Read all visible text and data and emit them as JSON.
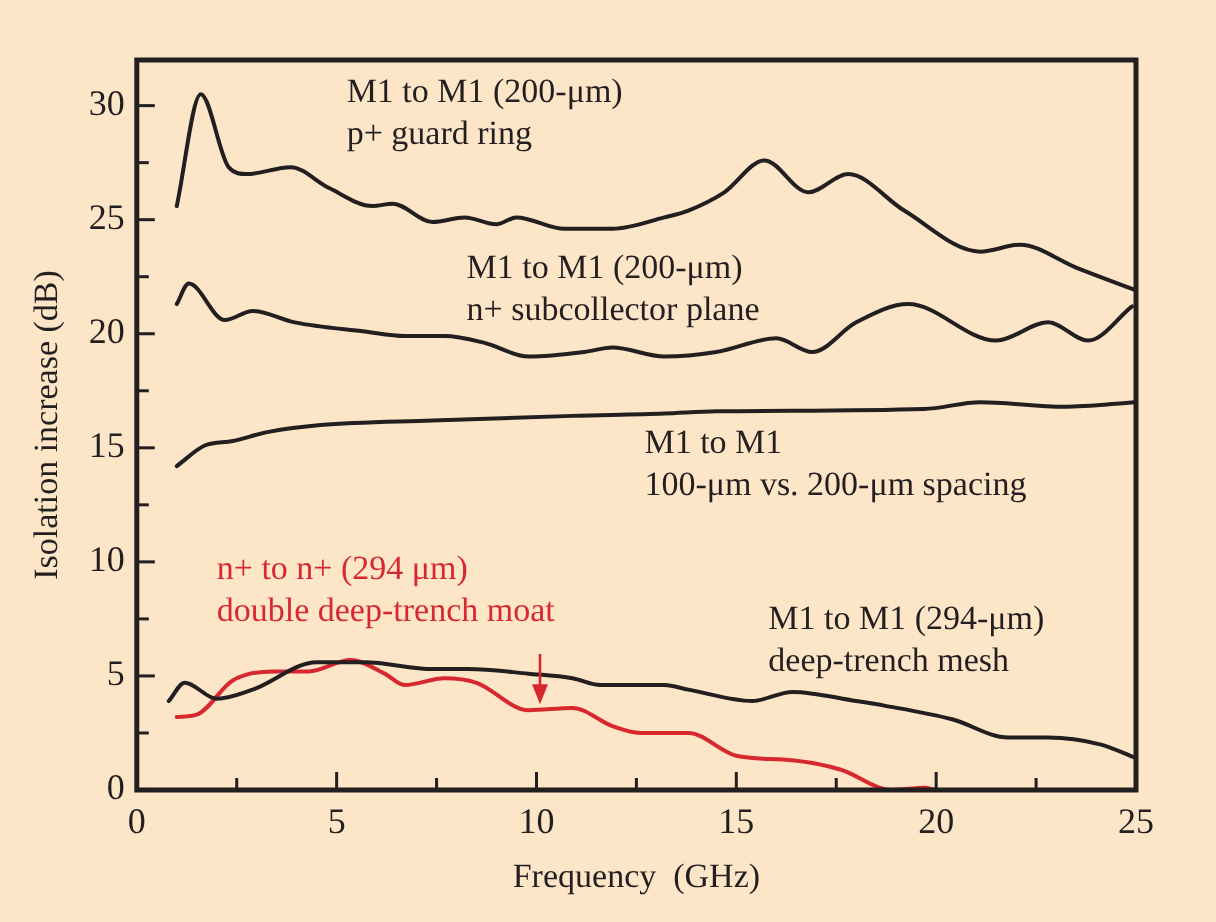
{
  "chart_data": {
    "type": "line",
    "xlabel": "Frequency  (GHz)",
    "ylabel": "Isolation increase (dB)",
    "xlim": [
      0,
      25
    ],
    "ylim": [
      0,
      32
    ],
    "xticks": [
      0,
      {
        "value": 2.5,
        "label": null
      },
      5,
      {
        "value": 7.5,
        "label": null
      },
      10,
      {
        "value": 12.5,
        "label": null
      },
      15,
      {
        "value": 17.5,
        "label": null
      },
      20,
      {
        "value": 22.5,
        "label": null
      },
      25
    ],
    "yticks": [
      0,
      {
        "value": 2.5,
        "label": null
      },
      5,
      {
        "value": 7.5,
        "label": null
      },
      10,
      {
        "value": 12.5,
        "label": null
      },
      15,
      {
        "value": 17.5,
        "label": null
      },
      20,
      {
        "value": 22.5,
        "label": null
      },
      25,
      {
        "value": 27.5,
        "label": null
      },
      30
    ],
    "grid": false,
    "legend": false,
    "marker": "none",
    "line_style": "solid",
    "series": [
      {
        "name": "M1 to M1 (200-μm)\np+ guard ring",
        "color": "#231f20",
        "x": [
          1.0,
          1.6,
          2.3,
          2.75,
          3.85,
          4.8,
          5.9,
          6.4,
          7.4,
          8.2,
          9.0,
          9.5,
          10.7,
          11.9,
          13.2,
          13.8,
          14.7,
          15.7,
          16.8,
          17.8,
          19.2,
          21.1,
          22.1,
          23.5,
          25.0
        ],
        "values": [
          25.6,
          30.5,
          27.3,
          27.0,
          27.3,
          26.4,
          25.6,
          25.7,
          24.9,
          25.1,
          24.8,
          25.1,
          24.6,
          24.6,
          25.1,
          25.4,
          26.2,
          27.6,
          26.2,
          27.0,
          25.4,
          23.6,
          23.9,
          22.9,
          21.9
        ]
      },
      {
        "name": "M1 to M1 (200-μm)\nn+ subcollector plane",
        "color": "#231f20",
        "x": [
          1.0,
          1.3,
          2.2,
          2.9,
          3.95,
          5.7,
          6.7,
          7.7,
          8.7,
          9.8,
          11.2,
          11.9,
          13.2,
          14.5,
          16.0,
          16.9,
          18.0,
          19.3,
          21.5,
          22.8,
          23.8,
          24.9
        ],
        "values": [
          21.3,
          22.2,
          20.6,
          21.0,
          20.5,
          20.1,
          19.9,
          19.9,
          19.6,
          19.0,
          19.2,
          19.4,
          19.0,
          19.2,
          19.8,
          19.2,
          20.5,
          21.3,
          19.7,
          20.5,
          19.7,
          21.2
        ]
      },
      {
        "name": "M1 to M1\n100-μm vs. 200-μm spacing",
        "color": "#231f20",
        "x": [
          1.0,
          1.7,
          2.4,
          3.3,
          4.6,
          7.4,
          10.9,
          13.2,
          14.5,
          19.7,
          21.1,
          23.2,
          25.0
        ],
        "values": [
          14.2,
          15.1,
          15.3,
          15.7,
          16.0,
          16.2,
          16.4,
          16.5,
          16.6,
          16.7,
          17.0,
          16.8,
          17.0
        ]
      },
      {
        "name": "M1 to M1 (294-μm)\ndeep-trench mesh",
        "color": "#231f20",
        "x": [
          0.8,
          1.2,
          2.0,
          2.9,
          4.5,
          5.7,
          7.4,
          8.3,
          9.8,
          10.9,
          11.6,
          13.2,
          13.8,
          15.4,
          16.4,
          18.0,
          18.7,
          20.4,
          21.8,
          22.8,
          24.1,
          25.0
        ],
        "values": [
          3.9,
          4.7,
          4.0,
          4.4,
          5.6,
          5.6,
          5.3,
          5.3,
          5.1,
          4.9,
          4.6,
          4.6,
          4.4,
          3.9,
          4.3,
          3.9,
          3.7,
          3.1,
          2.3,
          2.3,
          2.0,
          1.4
        ]
      },
      {
        "name": "n+ to n+ (294 μm)\ndouble deep-trench moat",
        "color": "#d7282f",
        "x": [
          1.0,
          1.5,
          2.4,
          3.4,
          4.3,
          5.35,
          6.2,
          6.7,
          7.7,
          8.5,
          9.8,
          10.9,
          11.9,
          12.6,
          13.8,
          15.0,
          16.4,
          17.6,
          18.9,
          19.7,
          20.0
        ],
        "values": [
          3.2,
          3.3,
          4.8,
          5.2,
          5.2,
          5.7,
          5.1,
          4.6,
          4.9,
          4.7,
          3.5,
          3.6,
          2.8,
          2.5,
          2.5,
          1.5,
          1.3,
          0.9,
          0,
          0.1,
          0
        ]
      }
    ]
  }
}
